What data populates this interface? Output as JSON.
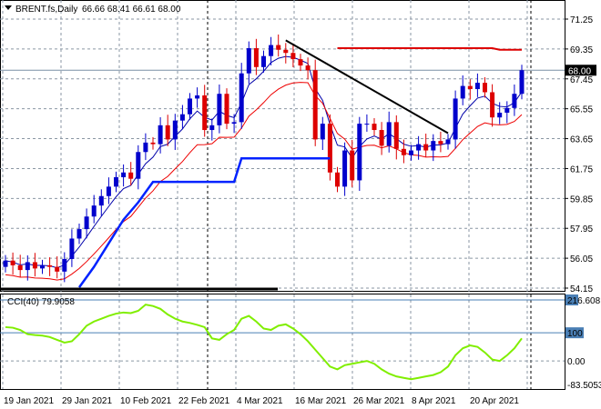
{
  "header": {
    "symbol": "BRENT.fs,Daily",
    "ohlc": "66.66 68.41 66.61 68.00"
  },
  "indicator": {
    "label": "CCI(40) 79.9058"
  },
  "colors": {
    "bull": "#0000cc",
    "bear": "#dd0000",
    "ma_fast": "#0000aa",
    "ma_slow": "#ee0000",
    "stop": "#0022ff",
    "cci": "#80ee00",
    "level": "#4a7fb5"
  },
  "chart_data": [
    {
      "type": "candlestick",
      "title": "BRENT.fs,Daily",
      "ylim": [
        54.15,
        71.25
      ],
      "yticks": [
        "71.25",
        "69.35",
        "67.45",
        "65.55",
        "63.65",
        "61.75",
        "59.85",
        "57.95",
        "56.05",
        "54.15"
      ],
      "current_price": "68.00",
      "xticks": [
        "19 Jan 2021",
        "29 Jan 2021",
        "10 Feb 2021",
        "22 Feb 2021",
        "4 Mar 2021",
        "16 Mar 2021",
        "26 Mar 2021",
        "8 Apr 2021",
        "20 Apr 2021"
      ],
      "closes": [
        55.9,
        55.6,
        55.3,
        55.8,
        55.4,
        55.6,
        55.5,
        55.2,
        56.0,
        57.3,
        57.9,
        58.7,
        59.4,
        60.0,
        60.6,
        61.2,
        61.5,
        61.1,
        62.8,
        63.4,
        63.3,
        64.5,
        63.6,
        64.8,
        65.2,
        66.2,
        66.4,
        64.2,
        64.5,
        66.5,
        64.6,
        64.7,
        67.8,
        69.4,
        68.2,
        68.9,
        69.6,
        69.3,
        69.1,
        68.7,
        68.3,
        68.0,
        63.6,
        64.6,
        61.5,
        60.6,
        62.9,
        61.0,
        64.6,
        64.6,
        64.2,
        63.2,
        64.7,
        63.0,
        62.6,
        62.9,
        63.3,
        62.9,
        63.5,
        63.3,
        63.6,
        66.2,
        67.0,
        66.8,
        67.2,
        66.6,
        65.0,
        65.3,
        65.6,
        66.5,
        68.0
      ],
      "first_open": 55.5,
      "stop_line": [
        [
          10,
          54.2
        ],
        [
          12,
          55.5
        ],
        [
          14,
          57.0
        ],
        [
          16,
          58.5
        ],
        [
          18,
          59.6
        ],
        [
          20,
          60.9
        ],
        [
          31,
          60.9
        ],
        [
          32,
          62.4
        ],
        [
          44,
          62.4
        ]
      ],
      "resistance": [
        [
          45,
          69.4
        ],
        [
          66,
          69.4
        ],
        [
          67,
          69.3
        ],
        [
          70,
          69.3
        ]
      ],
      "trendline": [
        [
          38,
          69.9
        ],
        [
          60,
          64.0
        ]
      ],
      "support_bar": [
        [
          0,
          54.15
        ],
        [
          37,
          54.15
        ]
      ]
    },
    {
      "type": "line",
      "title": "CCI(40) 79.9058",
      "ylim": [
        -83.5053,
        216.608
      ],
      "yticks": [
        "216.608",
        "100",
        "0.00",
        "-83.5053"
      ],
      "values": [
        120,
        118,
        110,
        95,
        92,
        90,
        85,
        75,
        65,
        70,
        95,
        125,
        140,
        150,
        160,
        168,
        172,
        170,
        178,
        200,
        195,
        185,
        165,
        150,
        140,
        135,
        128,
        120,
        80,
        75,
        95,
        110,
        150,
        160,
        140,
        115,
        110,
        125,
        130,
        115,
        95,
        70,
        40,
        10,
        -20,
        -30,
        -15,
        -10,
        -5,
        0,
        -10,
        -30,
        -45,
        -55,
        -60,
        -65,
        -60,
        -55,
        -50,
        -40,
        -20,
        20,
        45,
        55,
        50,
        30,
        5,
        0,
        20,
        45,
        80
      ]
    }
  ]
}
